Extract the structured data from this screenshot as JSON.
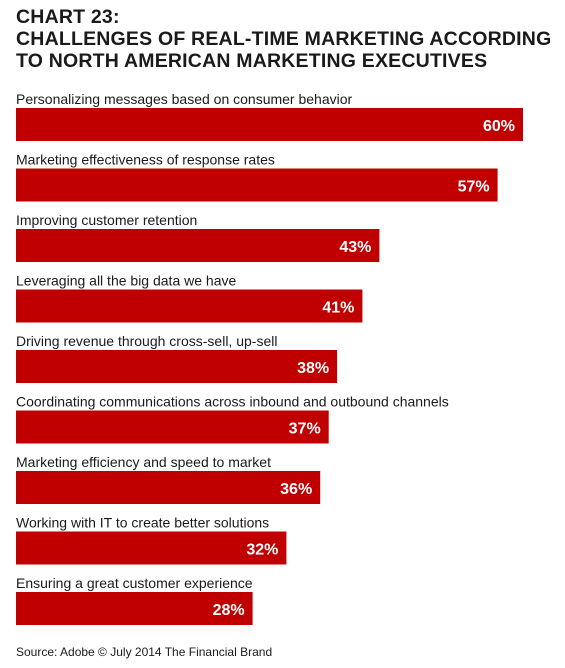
{
  "chart_data": {
    "type": "bar",
    "orientation": "horizontal",
    "title_lines": [
      "CHART 23:",
      "CHALLENGES OF REAL-TIME MARKETING ACCORDING",
      "TO NORTH AMERICAN MARKETING EXECUTIVES"
    ],
    "categories": [
      "Personalizing messages based on consumer behavior",
      "Marketing effectiveness of response rates",
      "Improving customer retention",
      "Leveraging all the big data we have",
      "Driving revenue through cross-sell, up-sell",
      "Coordinating communications across inbound and outbound channels",
      "Marketing efficiency and speed to market",
      "Working with IT to create better solutions",
      "Ensuring a great customer experience"
    ],
    "values": [
      60,
      57,
      43,
      41,
      38,
      37,
      36,
      32,
      28
    ],
    "value_labels": [
      "60%",
      "57%",
      "43%",
      "41%",
      "38%",
      "37%",
      "36%",
      "32%",
      "28%"
    ],
    "bar_color": "#c00000",
    "label_color": "#ffffff",
    "text_color": "#1a1a1a",
    "xlim": [
      0,
      60
    ],
    "grid": false,
    "legend": "none",
    "source": "Source:  Adobe © July 2014 The Financial Brand"
  }
}
